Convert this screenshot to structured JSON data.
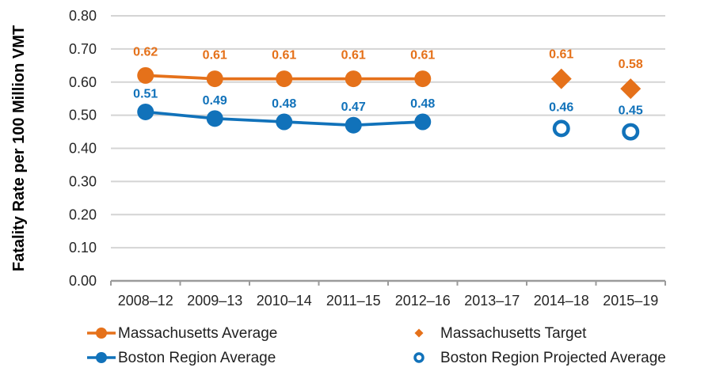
{
  "chart_data": {
    "type": "line",
    "title": "",
    "xlabel": "",
    "ylabel": "Fatality Rate per 100 Million VMT",
    "ylim": [
      0.0,
      0.8
    ],
    "ytick_step": 0.1,
    "ytick_labels": [
      "0.00",
      "0.10",
      "0.20",
      "0.30",
      "0.40",
      "0.50",
      "0.60",
      "0.70",
      "0.80"
    ],
    "grid": "horizontal",
    "legend_position": "bottom-two-columns",
    "categories": [
      "2008–12",
      "2009–13",
      "2010–14",
      "2011–15",
      "2012–16",
      "2013–17",
      "2014–18",
      "2015–19"
    ],
    "series": [
      {
        "name": "Massachusetts Average",
        "marker": "filled-circle",
        "line": true,
        "color": "#e5711a",
        "values": [
          0.62,
          0.61,
          0.61,
          0.61,
          0.61,
          null,
          null,
          null
        ],
        "data_labels": [
          "0.62",
          "0.61",
          "0.61",
          "0.61",
          "0.61",
          null,
          null,
          null
        ]
      },
      {
        "name": "Boston Region Average",
        "marker": "filled-circle",
        "line": true,
        "color": "#1172ba",
        "values": [
          0.51,
          0.49,
          0.48,
          0.47,
          0.48,
          null,
          null,
          null
        ],
        "data_labels": [
          "0.51",
          "0.49",
          "0.48",
          "0.47",
          "0.48",
          null,
          null,
          null
        ]
      },
      {
        "name": "Massachusetts Target",
        "marker": "filled-diamond",
        "line": false,
        "color": "#e5711a",
        "values": [
          null,
          null,
          null,
          null,
          null,
          null,
          0.61,
          0.58
        ],
        "data_labels": [
          null,
          null,
          null,
          null,
          null,
          null,
          "0.61",
          "0.58"
        ]
      },
      {
        "name": "Boston Region Projected Average",
        "marker": "open-circle",
        "line": false,
        "color": "#1172ba",
        "values": [
          null,
          null,
          null,
          null,
          null,
          null,
          0.46,
          0.45
        ],
        "data_labels": [
          null,
          null,
          null,
          null,
          null,
          null,
          "0.46",
          "0.45"
        ]
      }
    ],
    "colors": {
      "massachusetts_orange": "#e5711a",
      "boston_blue": "#1172ba",
      "gridline": "#d4d4d4",
      "axis_line": "#9b9b9b",
      "tick_text": "#262626",
      "legend_text": "#1f1f1f",
      "axis_title_text": "#000000"
    }
  }
}
